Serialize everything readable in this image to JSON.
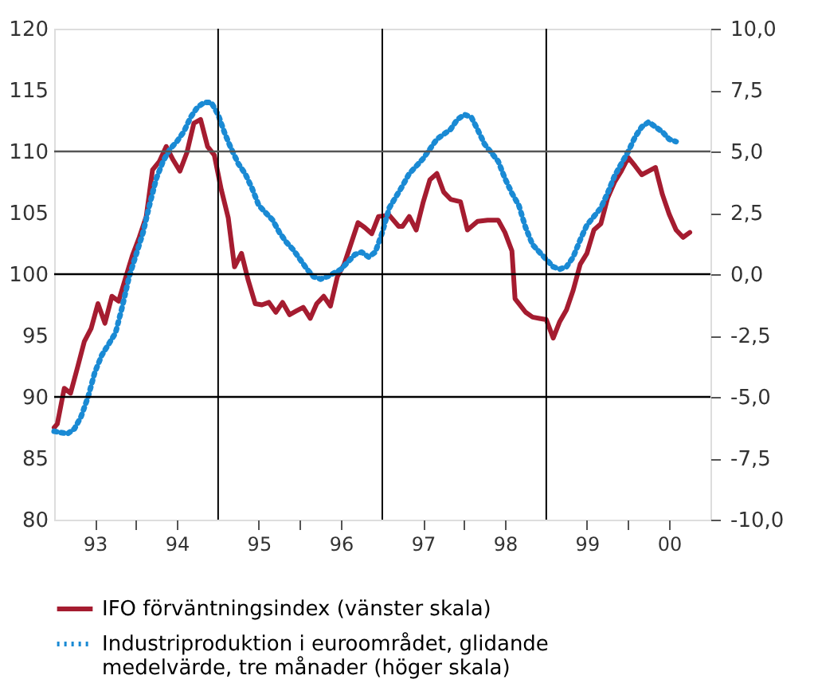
{
  "chart_data": {
    "type": "line",
    "xlim": [
      "1993-01-01",
      "2001-01-01"
    ],
    "xticks": [
      {
        "value": "1993-07-01",
        "label": "93"
      },
      {
        "value": "1994-01-01",
        "label": null
      },
      {
        "value": "1994-07-01",
        "label": "94"
      },
      {
        "value": "1995-07-01",
        "label": "95"
      },
      {
        "value": "1996-01-01",
        "label": null
      },
      {
        "value": "1996-07-01",
        "label": "96"
      },
      {
        "value": "1997-07-01",
        "label": "97"
      },
      {
        "value": "1998-01-01",
        "label": null
      },
      {
        "value": "1998-07-01",
        "label": "98"
      },
      {
        "value": "1999-07-01",
        "label": "99"
      },
      {
        "value": "2000-01-01",
        "label": null
      },
      {
        "value": "2000-07-01",
        "label": "00"
      }
    ],
    "ylim": [
      80,
      120
    ],
    "yticks": [
      80,
      85,
      90,
      95,
      100,
      105,
      110,
      115,
      120
    ],
    "y2lim": [
      -10,
      10
    ],
    "y2ticks": [
      {
        "value": -10,
        "label": "-10,0"
      },
      {
        "value": -7.5,
        "label": "-7,5"
      },
      {
        "value": -5,
        "label": "-5,0"
      },
      {
        "value": -2.5,
        "label": "-2,5"
      },
      {
        "value": 0,
        "label": "0,0"
      },
      {
        "value": 2.5,
        "label": "2,5"
      },
      {
        "value": 5,
        "label": "5,0"
      },
      {
        "value": 7.5,
        "label": "7,5"
      },
      {
        "value": 10,
        "label": "10,0"
      }
    ],
    "grid": false,
    "legend": "bottom",
    "ref_lines": [
      {
        "axis": "x",
        "value": "1995-01-01",
        "color": "#000000"
      },
      {
        "axis": "x",
        "value": "1997-01-01",
        "color": "#000000"
      },
      {
        "axis": "x",
        "value": "1999-01-01",
        "color": "#000000"
      },
      {
        "axis": "y",
        "value": 90,
        "color": "#000000"
      },
      {
        "axis": "y",
        "value": 100,
        "color": "#000000"
      },
      {
        "axis": "y",
        "value": 110,
        "color": "#555555"
      }
    ],
    "series": [
      {
        "name": "IFO förväntningsindex (vänster skala)",
        "color": "#a51c30",
        "line_style": "solid",
        "x": [
          "1993-01-01",
          "1993-01-15",
          "1993-02-15",
          "1993-03-15",
          "1993-04-15",
          "1993-05-15",
          "1993-06-15",
          "1993-07-15",
          "1993-08-15",
          "1993-09-15",
          "1993-10-15",
          "1993-11-15",
          "1993-12-15",
          "1994-01-15",
          "1994-02-15",
          "1994-03-15",
          "1994-04-15",
          "1994-05-15",
          "1994-06-15",
          "1994-07-15",
          "1994-08-15",
          "1994-09-15",
          "1994-10-15",
          "1994-11-15",
          "1994-12-15",
          "1995-01-15",
          "1995-02-15",
          "1995-03-15",
          "1995-04-15",
          "1995-05-15",
          "1995-06-15",
          "1995-07-15",
          "1995-08-15",
          "1995-09-15",
          "1995-10-15",
          "1995-11-15",
          "1995-12-15",
          "1996-01-15",
          "1996-02-15",
          "1996-03-15",
          "1996-04-15",
          "1996-05-15",
          "1996-06-15",
          "1996-07-15",
          "1996-08-15",
          "1996-09-15",
          "1996-10-15",
          "1996-11-15",
          "1996-12-15",
          "1997-02-01",
          "1997-03-15",
          "1997-04-01",
          "1997-05-01",
          "1997-06-01",
          "1997-07-01",
          "1997-08-01",
          "1997-09-01",
          "1997-10-01",
          "1997-11-01",
          "1997-12-15",
          "1998-01-15",
          "1998-03-01",
          "1998-04-15",
          "1998-06-01",
          "1998-07-01",
          "1998-08-01",
          "1998-08-15",
          "1998-10-01",
          "1998-11-01",
          "1998-12-01",
          "1999-01-01",
          "1999-02-01",
          "1999-03-01",
          "1999-04-01",
          "1999-05-01",
          "1999-06-01",
          "1999-07-01",
          "1999-08-01",
          "1999-09-01",
          "1999-10-01",
          "1999-11-01",
          "1999-12-01",
          "2000-01-01",
          "2000-02-01",
          "2000-03-01",
          "2000-04-01",
          "2000-05-01",
          "2000-06-01",
          "2000-07-01",
          "2000-08-01",
          "2000-09-01",
          "2000-10-01"
        ],
        "values": [
          87.5,
          87.8,
          90.7,
          90.3,
          92.4,
          94.5,
          95.6,
          97.6,
          96.0,
          98.2,
          97.8,
          99.7,
          101.5,
          103.0,
          104.7,
          108.5,
          109.2,
          110.4,
          109.3,
          108.4,
          109.9,
          112.3,
          112.6,
          110.4,
          109.7,
          106.9,
          104.6,
          100.6,
          101.7,
          99.5,
          97.6,
          97.5,
          97.7,
          96.9,
          97.7,
          96.7,
          97.0,
          97.3,
          96.4,
          97.6,
          98.2,
          97.4,
          99.8,
          100.8,
          102.5,
          104.2,
          103.8,
          103.3,
          104.7,
          104.8,
          103.9,
          103.9,
          104.7,
          103.6,
          105.8,
          107.7,
          108.2,
          106.7,
          106.1,
          105.9,
          103.6,
          104.3,
          104.4,
          104.4,
          103.4,
          101.9,
          98.0,
          96.9,
          96.5,
          96.4,
          96.3,
          94.8,
          96.1,
          97.1,
          98.7,
          100.8,
          101.7,
          103.6,
          104.1,
          106.2,
          107.5,
          108.4,
          109.5,
          108.8,
          108.1,
          108.4,
          108.7,
          106.5,
          104.9,
          103.6,
          103.0,
          103.4
        ]
      },
      {
        "name": "Industriproduktion i euroområdet, glidande medelvärde, tre månader (höger skala)",
        "color": "#1a8ad4",
        "line_style": "dotted",
        "axis": "y2",
        "x": [
          "1993-01",
          "1993-03",
          "1993-04",
          "1993-05",
          "1993-06",
          "1993-07",
          "1993-08",
          "1993-10",
          "1993-11",
          "1993-12",
          "1994-01",
          "1994-02",
          "1994-03",
          "1994-04",
          "1994-05",
          "1994-06",
          "1994-07",
          "1994-08",
          "1994-09",
          "1994-10",
          "1994-11",
          "1994-12",
          "1995-01",
          "1995-02",
          "1995-03",
          "1995-04",
          "1995-05",
          "1995-06",
          "1995-07",
          "1995-09",
          "1995-10",
          "1995-11",
          "1995-12",
          "1996-01",
          "1996-02",
          "1996-03",
          "1996-04",
          "1996-05",
          "1996-07",
          "1996-08",
          "1996-09",
          "1996-10",
          "1996-11",
          "1996-12",
          "1997-01",
          "1997-02",
          "1997-04",
          "1997-05",
          "1997-06",
          "1997-07",
          "1997-08",
          "1997-09",
          "1997-11",
          "1997-12",
          "1998-01",
          "1998-02",
          "1998-03",
          "1998-04",
          "1998-06",
          "1998-07",
          "1998-08",
          "1998-09",
          "1998-10",
          "1998-11",
          "1999-01",
          "1999-02",
          "1999-03",
          "1999-04",
          "1999-05",
          "1999-06",
          "1999-07",
          "1999-09",
          "1999-10",
          "1999-11",
          "1999-12",
          "2000-01",
          "2000-02",
          "2000-03",
          "2000-04",
          "2000-06",
          "2000-07",
          "2000-08"
        ],
        "values": [
          -6.4,
          -6.5,
          -6.3,
          -5.8,
          -5.0,
          -4.0,
          -3.3,
          -2.4,
          -1.3,
          -0.1,
          0.8,
          1.7,
          2.8,
          3.9,
          4.6,
          5.1,
          5.4,
          5.8,
          6.4,
          6.8,
          7.0,
          7.0,
          6.5,
          5.7,
          5.1,
          4.5,
          4.1,
          3.5,
          2.8,
          2.2,
          1.7,
          1.3,
          1.0,
          0.6,
          0.2,
          -0.1,
          -0.2,
          -0.1,
          0.2,
          0.5,
          0.8,
          0.9,
          0.7,
          0.9,
          1.7,
          2.7,
          3.6,
          4.1,
          4.4,
          4.7,
          5.1,
          5.5,
          5.9,
          6.3,
          6.5,
          6.4,
          5.9,
          5.3,
          4.6,
          3.9,
          3.3,
          2.8,
          1.9,
          1.2,
          0.6,
          0.3,
          0.2,
          0.3,
          0.7,
          1.4,
          2.0,
          2.7,
          3.3,
          4.0,
          4.5,
          5.0,
          5.6,
          6.0,
          6.2,
          5.8,
          5.5,
          5.4
        ]
      }
    ]
  }
}
